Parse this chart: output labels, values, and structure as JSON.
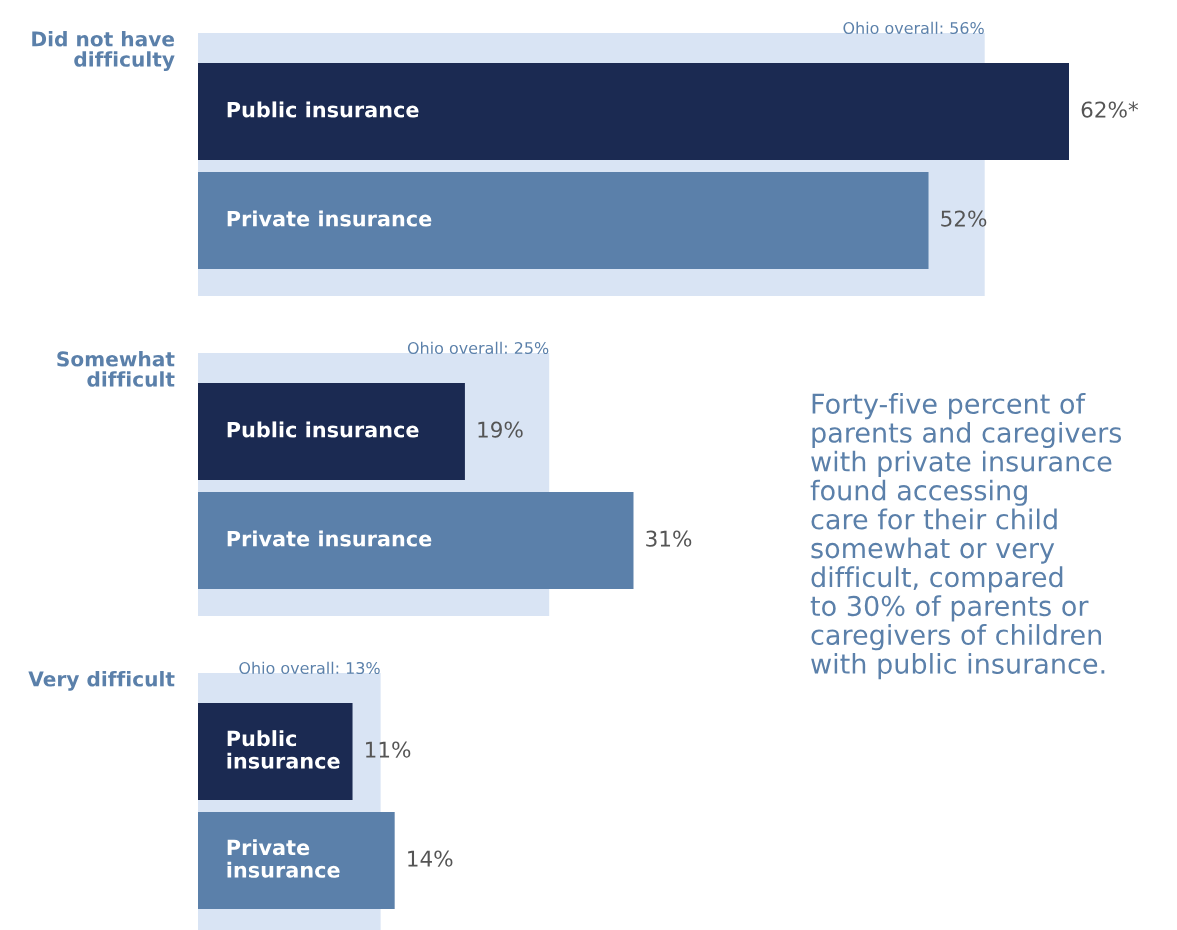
{
  "chart_data": {
    "type": "bar",
    "orientation": "horizontal",
    "tick_labels": false,
    "categories": [
      "Did not have difficulty",
      "Somewhat difficult",
      "Very difficult"
    ],
    "series": [
      {
        "color": "#d9e4f4",
        "values": [
          56,
          25,
          13
        ],
        "value_labels": [
          "Ohio overall: 56%",
          "Ohio overall: 25%",
          "Ohio overall: 13%"
        ]
      },
      {
        "name": "Public insurance",
        "color": "#1b2a52",
        "values": [
          62,
          19,
          11
        ],
        "value_labels": [
          "62%*",
          "19%",
          "11%"
        ]
      },
      {
        "name": "Private insurance",
        "color": "#5b80aa",
        "values": [
          52,
          31,
          14
        ],
        "value_labels": [
          "52%",
          "31%",
          "14%"
        ]
      }
    ],
    "annotations": [
      "Forty-five percent of\nparents and caregivers\nwith private insurance\nfound accessing\ncare for their child\nsomewhat or very\ndifficult, compared\nto 30% of parents or\ncaregivers of children\nwith public insurance."
    ]
  }
}
